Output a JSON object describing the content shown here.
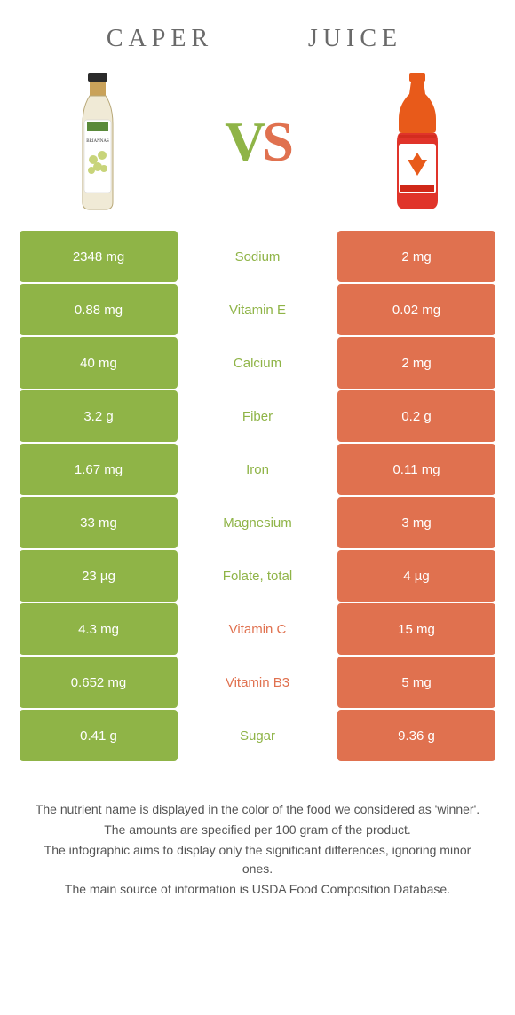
{
  "colors": {
    "left": "#8fb447",
    "right": "#e0714f",
    "midText_left": "#8fb447",
    "midText_right": "#e0714f",
    "headerText": "#6a6a6a",
    "footText": "#545454",
    "white": "#ffffff"
  },
  "header": {
    "left": "CAPER",
    "right": "JUICE"
  },
  "vs": {
    "v": "V",
    "s": "S"
  },
  "rows": [
    {
      "left": "2348 mg",
      "mid": "Sodium",
      "right": "2 mg",
      "winner": "left"
    },
    {
      "left": "0.88 mg",
      "mid": "Vitamin E",
      "right": "0.02 mg",
      "winner": "left"
    },
    {
      "left": "40 mg",
      "mid": "Calcium",
      "right": "2 mg",
      "winner": "left"
    },
    {
      "left": "3.2 g",
      "mid": "Fiber",
      "right": "0.2 g",
      "winner": "left"
    },
    {
      "left": "1.67 mg",
      "mid": "Iron",
      "right": "0.11 mg",
      "winner": "left"
    },
    {
      "left": "33 mg",
      "mid": "Magnesium",
      "right": "3 mg",
      "winner": "left"
    },
    {
      "left": "23 µg",
      "mid": "Folate, total",
      "right": "4 µg",
      "winner": "left"
    },
    {
      "left": "4.3 mg",
      "mid": "Vitamin C",
      "right": "15 mg",
      "winner": "right"
    },
    {
      "left": "0.652 mg",
      "mid": "Vitamin B3",
      "right": "5 mg",
      "winner": "right"
    },
    {
      "left": "0.41 g",
      "mid": "Sugar",
      "right": "9.36 g",
      "winner": "left"
    }
  ],
  "footnotes": [
    "The nutrient name is displayed in the color of the food we considered as 'winner'.",
    "The amounts are specified per 100 gram of the product.",
    "The infographic aims to display only the significant differences, ignoring minor ones.",
    "The main source of information is USDA Food Composition Database."
  ]
}
